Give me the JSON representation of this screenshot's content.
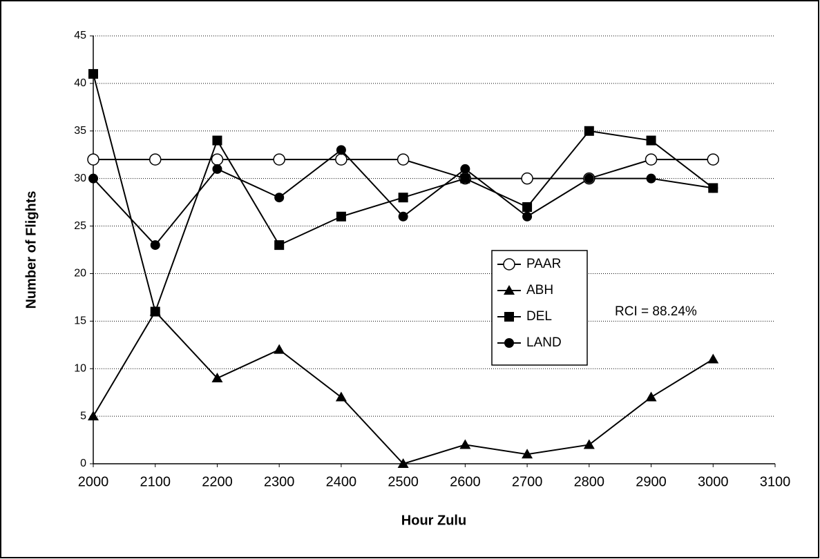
{
  "chart_data": {
    "type": "line",
    "x_label": "Hour Zulu",
    "y_label": "Number of Flights",
    "annotation": "RCI = 88.24%",
    "x": [
      2000,
      2100,
      2200,
      2300,
      2400,
      2500,
      2600,
      2700,
      2800,
      2900,
      3000
    ],
    "series": [
      {
        "name": "PAAR",
        "color": "#000000",
        "marker": "circle-open",
        "values": [
          32,
          32,
          32,
          32,
          32,
          32,
          30,
          30,
          30,
          32,
          32
        ]
      },
      {
        "name": "ABH",
        "color": "#000000",
        "marker": "triangle",
        "values": [
          5,
          16,
          9,
          12,
          7,
          0,
          2,
          1,
          2,
          7,
          11
        ]
      },
      {
        "name": "DEL",
        "color": "#000000",
        "marker": "square",
        "values": [
          41,
          16,
          34,
          23,
          26,
          28,
          30,
          27,
          35,
          34,
          29
        ]
      },
      {
        "name": "LAND",
        "color": "#000000",
        "marker": "circle",
        "values": [
          30,
          23,
          31,
          28,
          33,
          26,
          31,
          26,
          30,
          30,
          29
        ]
      }
    ],
    "xlim": [
      2000,
      3100
    ],
    "xticks": [
      2000,
      2100,
      2200,
      2300,
      2400,
      2500,
      2600,
      2700,
      2800,
      2900,
      3000,
      3100
    ],
    "ylim": [
      0,
      45
    ],
    "yticks": [
      0,
      5,
      10,
      15,
      20,
      25,
      30,
      35,
      40,
      45
    ],
    "grid": true
  }
}
